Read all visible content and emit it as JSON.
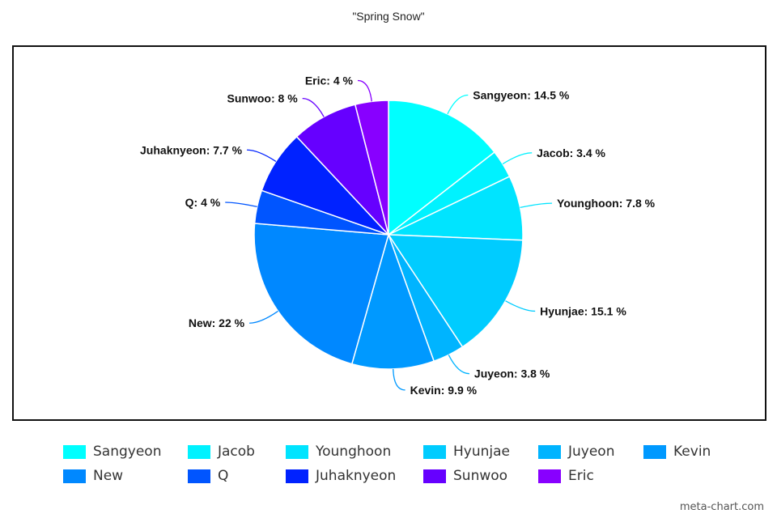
{
  "chart_data": {
    "type": "pie",
    "title": "\"Spring Snow\"",
    "label_suffix": " %",
    "slices": [
      {
        "label": "Sangyeon",
        "value": 14.5,
        "color": "#00FFFF"
      },
      {
        "label": "Jacob",
        "value": 3.4,
        "color": "#00F2FF"
      },
      {
        "label": "Younghoon",
        "value": 7.8,
        "color": "#00E4FF"
      },
      {
        "label": "Hyunjae",
        "value": 15.1,
        "color": "#00CCFF"
      },
      {
        "label": "Juyeon",
        "value": 3.8,
        "color": "#00B4FF"
      },
      {
        "label": "Kevin",
        "value": 9.9,
        "color": "#0099FF"
      },
      {
        "label": "New",
        "value": 22,
        "color": "#0088FF"
      },
      {
        "label": "Q",
        "value": 4,
        "color": "#0055FF"
      },
      {
        "label": "Juhaknyeon",
        "value": 7.7,
        "color": "#0022FF"
      },
      {
        "label": "Sunwoo",
        "value": 8,
        "color": "#6600FF"
      },
      {
        "label": "Eric",
        "value": 4,
        "color": "#8800FF"
      }
    ],
    "legend_position": "bottom"
  },
  "watermark": "meta-chart.com"
}
